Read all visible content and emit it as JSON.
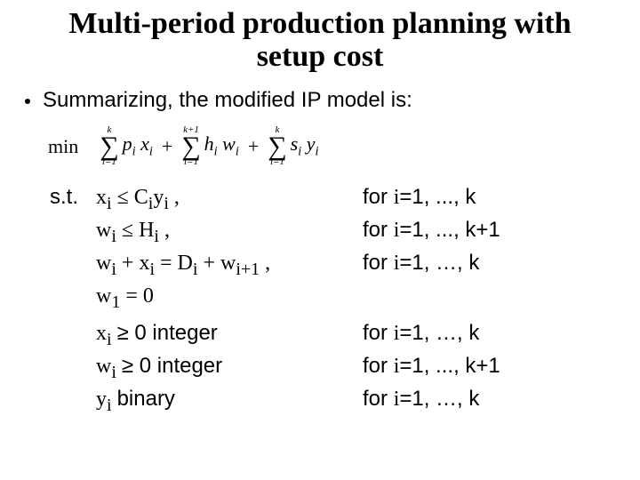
{
  "title_fontsize": 34,
  "title_line1": "Multi-period production planning  with",
  "title_line2": "setup cost",
  "bullet": "Summarizing, the modified IP model is:",
  "obj": {
    "min": "min",
    "sum1_top": "k",
    "sum1_bot": "i=1",
    "term1_a": "p",
    "term1_b": "x",
    "plus": "+",
    "sum2_top": "k+1",
    "sum2_bot": "i=1",
    "term2_a": "h",
    "term2_b": "w",
    "sum3_top": "k",
    "sum3_bot": "i=1",
    "term3_a": "s",
    "term3_b": "y",
    "sub": "i"
  },
  "st_label": "s.t.",
  "rows": [
    {
      "mid_html": "x<sub>i</sub> ≤ C<sub>i</sub>y<sub>i</sub>  ,",
      "right": "for i=1, ..., k"
    },
    {
      "mid_html": "w<sub>i</sub> ≤ H<sub>i</sub>  ,",
      "right": "for i=1, ..., k+1"
    },
    {
      "mid_html": "w<sub>i</sub> + x<sub>i</sub> = D<sub>i</sub> + w<sub>i+1</sub>  ,",
      "right": "for i=1, …, k"
    },
    {
      "mid_html": "w<sub>1</sub> = 0",
      "right": ""
    },
    {
      "mid_html": "x<sub>i</sub> <span class='upright'>≥ 0  integer</span>",
      "right": "for i=1, …, k"
    },
    {
      "mid_html": "w<sub>i</sub> <span class='upright'>≥ 0  integer</span>",
      "right": "for i=1, ..., k+1"
    },
    {
      "mid_html": "y<sub>i</sub> <span class='upright'>binary</span>",
      "right": "for i=1, …, k"
    }
  ]
}
